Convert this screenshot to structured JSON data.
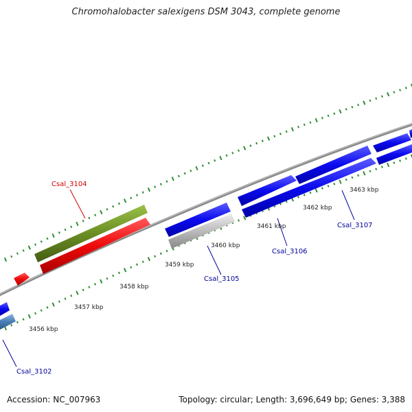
{
  "title": "Chromohalobacter salexigens DSM 3043, complete genome",
  "footer": {
    "accession": "Accession: NC_007963",
    "summary": "Topology: circular; Length: 3,696,649 bp; Genes: 3,388"
  },
  "scale_labels": [
    "3456 kbp",
    "3457 kbp",
    "3458 kbp",
    "3459 kbp",
    "3460 kbp",
    "3461 kbp",
    "3462 kbp",
    "3463 kbp"
  ],
  "gene_labels": [
    {
      "name": "Csal_3104",
      "color": "#cc0000"
    },
    {
      "name": "Csal_3105",
      "color": "#000099"
    },
    {
      "name": "Csal_3106",
      "color": "#000099"
    },
    {
      "name": "Csal_3107",
      "color": "#000099"
    },
    {
      "name": "Csal_3102",
      "color": "#000099"
    }
  ],
  "colors": {
    "cds_forward": "#0a0aee",
    "cds_reverse_red": "#ee0a0a",
    "gene_green": "#6b8e23",
    "cds_light_blue": "#4a7fb5",
    "cds_gray": "#bbbbbb",
    "backbone": "#888888",
    "ticks": "#2e8b2e"
  }
}
